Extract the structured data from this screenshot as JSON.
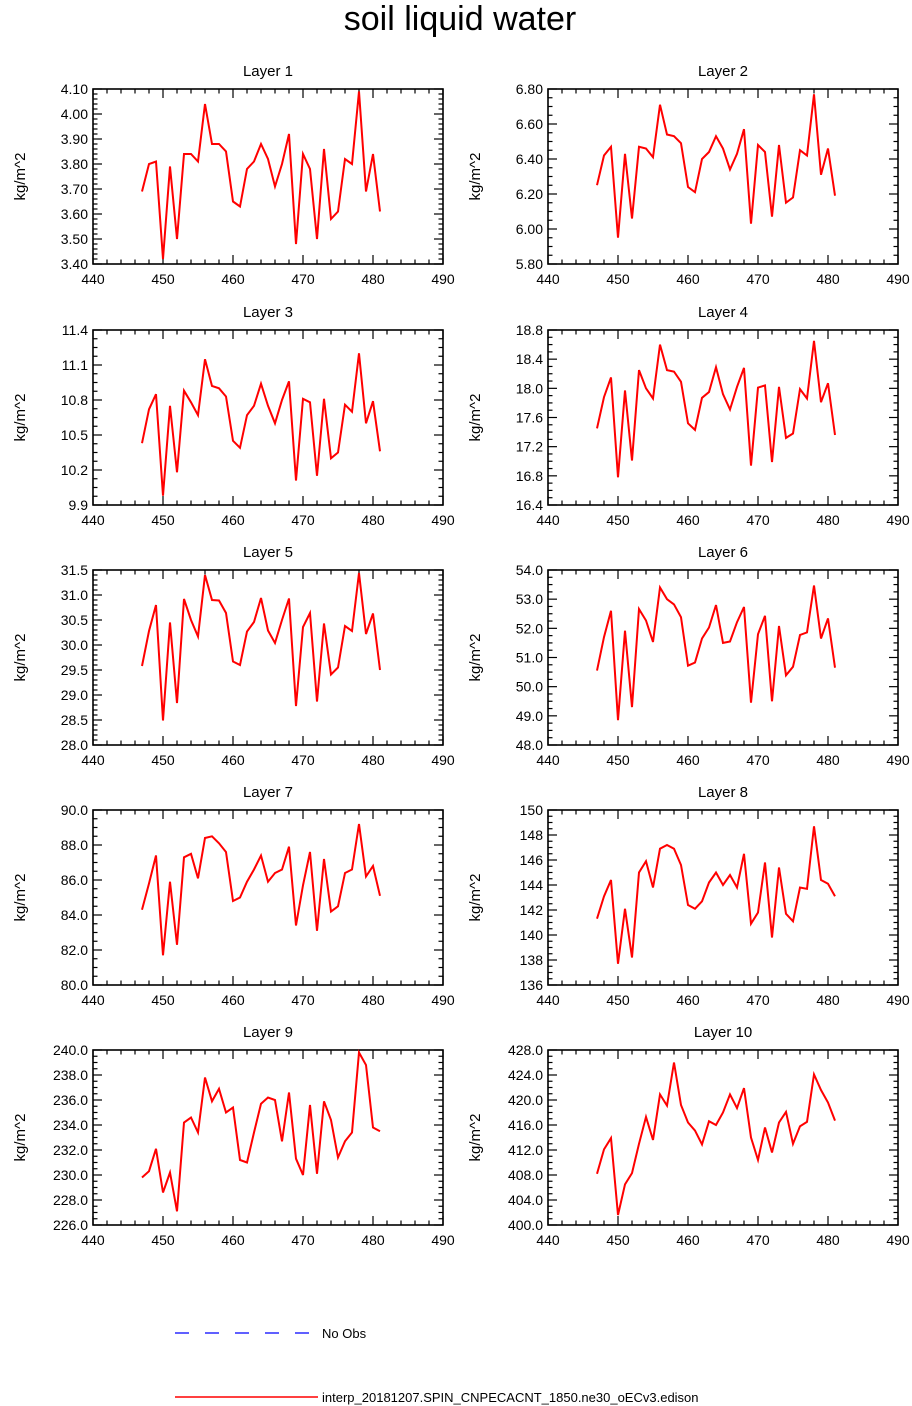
{
  "page": {
    "title": "soil liquid water"
  },
  "legend": {
    "no_obs_label": "No Obs",
    "no_obs_color": "#0000ff",
    "model_label": "interp_20181207.SPIN_CNPECACNT_1850.ne30_oECv3.edison",
    "model_color": "#ff0000"
  },
  "chart_data": [
    {
      "type": "line",
      "title": "Layer 1",
      "xlabel": "",
      "ylabel": "kg/m^2",
      "xlim": [
        440,
        490
      ],
      "xticks": [
        440,
        450,
        460,
        470,
        480,
        490
      ],
      "xtick_labels": [
        "440",
        "450",
        "460",
        "470",
        "480",
        "490"
      ],
      "ylim": [
        3.4,
        4.1
      ],
      "yticks": [
        3.4,
        3.5,
        3.6,
        3.7,
        3.8,
        3.9,
        4.0,
        4.1
      ],
      "ytick_labels": [
        "3.40",
        "3.50",
        "3.60",
        "3.70",
        "3.80",
        "3.90",
        "4.00",
        "4.10"
      ],
      "x": [
        447,
        448,
        449,
        450,
        451,
        452,
        453,
        454,
        455,
        456,
        457,
        458,
        459,
        460,
        461,
        462,
        463,
        464,
        465,
        466,
        467,
        468,
        469,
        470,
        471,
        472,
        473,
        474,
        475,
        476,
        477,
        478,
        479,
        480,
        481
      ],
      "series": [
        {
          "values": [
            3.69,
            3.8,
            3.81,
            3.42,
            3.79,
            3.5,
            3.84,
            3.84,
            3.81,
            4.04,
            3.88,
            3.88,
            3.85,
            3.65,
            3.63,
            3.78,
            3.81,
            3.88,
            3.82,
            3.71,
            3.8,
            3.92,
            3.48,
            3.84,
            3.78,
            3.5,
            3.86,
            3.58,
            3.61,
            3.82,
            3.8,
            4.09,
            3.69,
            3.84,
            3.61
          ],
          "color": "#ff0000"
        }
      ]
    },
    {
      "type": "line",
      "title": "Layer 2",
      "xlabel": "",
      "ylabel": "kg/m^2",
      "xlim": [
        440,
        490
      ],
      "xticks": [
        440,
        450,
        460,
        470,
        480,
        490
      ],
      "xtick_labels": [
        "440",
        "450",
        "460",
        "470",
        "480",
        "490"
      ],
      "ylim": [
        5.8,
        6.8
      ],
      "yticks": [
        5.8,
        6.0,
        6.2,
        6.4,
        6.6,
        6.8
      ],
      "ytick_labels": [
        "5.80",
        "6.00",
        "6.20",
        "6.40",
        "6.60",
        "6.80"
      ],
      "x": [
        447,
        448,
        449,
        450,
        451,
        452,
        453,
        454,
        455,
        456,
        457,
        458,
        459,
        460,
        461,
        462,
        463,
        464,
        465,
        466,
        467,
        468,
        469,
        470,
        471,
        472,
        473,
        474,
        475,
        476,
        477,
        478,
        479,
        480,
        481
      ],
      "series": [
        {
          "values": [
            6.25,
            6.42,
            6.47,
            5.95,
            6.43,
            6.06,
            6.47,
            6.46,
            6.41,
            6.71,
            6.54,
            6.53,
            6.49,
            6.24,
            6.21,
            6.4,
            6.44,
            6.53,
            6.46,
            6.34,
            6.43,
            6.57,
            6.03,
            6.48,
            6.44,
            6.07,
            6.48,
            6.15,
            6.18,
            6.45,
            6.42,
            6.77,
            6.31,
            6.46,
            6.19
          ],
          "color": "#ff0000"
        }
      ]
    },
    {
      "type": "line",
      "title": "Layer 3",
      "xlabel": "",
      "ylabel": "kg/m^2",
      "xlim": [
        440,
        490
      ],
      "xticks": [
        440,
        450,
        460,
        470,
        480,
        490
      ],
      "xtick_labels": [
        "440",
        "450",
        "460",
        "470",
        "480",
        "490"
      ],
      "ylim": [
        9.9,
        11.4
      ],
      "yticks": [
        9.9,
        10.2,
        10.5,
        10.8,
        11.1,
        11.4
      ],
      "ytick_labels": [
        "9.9",
        "10.2",
        "10.5",
        "10.8",
        "11.1",
        "11.4"
      ],
      "x": [
        447,
        448,
        449,
        450,
        451,
        452,
        453,
        454,
        455,
        456,
        457,
        458,
        459,
        460,
        461,
        462,
        463,
        464,
        465,
        466,
        467,
        468,
        469,
        470,
        471,
        472,
        473,
        474,
        475,
        476,
        477,
        478,
        479,
        480,
        481
      ],
      "series": [
        {
          "values": [
            10.43,
            10.72,
            10.85,
            9.98,
            10.75,
            10.18,
            10.88,
            10.78,
            10.67,
            11.15,
            10.92,
            10.9,
            10.83,
            10.45,
            10.39,
            10.67,
            10.75,
            10.94,
            10.75,
            10.6,
            10.8,
            10.96,
            10.11,
            10.81,
            10.78,
            10.15,
            10.81,
            10.3,
            10.35,
            10.76,
            10.7,
            11.2,
            10.6,
            10.79,
            10.36
          ],
          "color": "#ff0000"
        }
      ]
    },
    {
      "type": "line",
      "title": "Layer 4",
      "xlabel": "",
      "ylabel": "kg/m^2",
      "xlim": [
        440,
        490
      ],
      "xticks": [
        440,
        450,
        460,
        470,
        480,
        490
      ],
      "xtick_labels": [
        "440",
        "450",
        "460",
        "470",
        "480",
        "490"
      ],
      "ylim": [
        16.4,
        18.8
      ],
      "yticks": [
        16.4,
        16.8,
        17.2,
        17.6,
        18.0,
        18.4,
        18.8
      ],
      "ytick_labels": [
        "16.4",
        "16.8",
        "17.2",
        "17.6",
        "18.0",
        "18.4",
        "18.8"
      ],
      "x": [
        447,
        448,
        449,
        450,
        451,
        452,
        453,
        454,
        455,
        456,
        457,
        458,
        459,
        460,
        461,
        462,
        463,
        464,
        465,
        466,
        467,
        468,
        469,
        470,
        471,
        472,
        473,
        474,
        475,
        476,
        477,
        478,
        479,
        480,
        481
      ],
      "series": [
        {
          "values": [
            17.45,
            17.88,
            18.15,
            16.78,
            17.97,
            17.01,
            18.25,
            18.0,
            17.86,
            18.6,
            18.25,
            18.23,
            18.09,
            17.52,
            17.43,
            17.87,
            17.95,
            18.29,
            17.92,
            17.71,
            18.02,
            18.28,
            16.94,
            18.01,
            18.04,
            16.99,
            18.02,
            17.32,
            17.38,
            17.99,
            17.86,
            18.65,
            17.81,
            18.07,
            17.36
          ],
          "color": "#ff0000"
        }
      ]
    },
    {
      "type": "line",
      "title": "Layer 5",
      "xlabel": "",
      "ylabel": "kg/m^2",
      "xlim": [
        440,
        490
      ],
      "xticks": [
        440,
        450,
        460,
        470,
        480,
        490
      ],
      "xtick_labels": [
        "440",
        "450",
        "460",
        "470",
        "480",
        "490"
      ],
      "ylim": [
        28.0,
        31.5
      ],
      "yticks": [
        28.0,
        28.5,
        29.0,
        29.5,
        30.0,
        30.5,
        31.0,
        31.5
      ],
      "ytick_labels": [
        "28.0",
        "28.5",
        "29.0",
        "29.5",
        "30.0",
        "30.5",
        "31.0",
        "31.5"
      ],
      "x": [
        447,
        448,
        449,
        450,
        451,
        452,
        453,
        454,
        455,
        456,
        457,
        458,
        459,
        460,
        461,
        462,
        463,
        464,
        465,
        466,
        467,
        468,
        469,
        470,
        471,
        472,
        473,
        474,
        475,
        476,
        477,
        478,
        479,
        480,
        481
      ],
      "series": [
        {
          "values": [
            29.58,
            30.28,
            30.8,
            28.49,
            30.45,
            28.84,
            30.92,
            30.5,
            30.17,
            31.4,
            30.9,
            30.89,
            30.64,
            29.67,
            29.6,
            30.27,
            30.46,
            30.94,
            30.29,
            30.04,
            30.5,
            30.93,
            28.78,
            30.36,
            30.64,
            28.87,
            30.43,
            29.41,
            29.55,
            30.38,
            30.28,
            31.44,
            30.22,
            30.63,
            29.5
          ],
          "color": "#ff0000"
        }
      ]
    },
    {
      "type": "line",
      "title": "Layer 6",
      "xlabel": "",
      "ylabel": "kg/m^2",
      "xlim": [
        440,
        490
      ],
      "xticks": [
        440,
        450,
        460,
        470,
        480,
        490
      ],
      "xtick_labels": [
        "440",
        "450",
        "460",
        "470",
        "480",
        "490"
      ],
      "ylim": [
        48.0,
        54.0
      ],
      "yticks": [
        48.0,
        49.0,
        50.0,
        51.0,
        52.0,
        53.0,
        54.0
      ],
      "ytick_labels": [
        "48.0",
        "49.0",
        "50.0",
        "51.0",
        "52.0",
        "53.0",
        "54.0"
      ],
      "x": [
        447,
        448,
        449,
        450,
        451,
        452,
        453,
        454,
        455,
        456,
        457,
        458,
        459,
        460,
        461,
        462,
        463,
        464,
        465,
        466,
        467,
        468,
        469,
        470,
        471,
        472,
        473,
        474,
        475,
        476,
        477,
        478,
        479,
        480,
        481
      ],
      "series": [
        {
          "values": [
            50.55,
            51.7,
            52.6,
            48.85,
            51.92,
            49.3,
            52.66,
            52.27,
            51.53,
            53.4,
            53.0,
            52.82,
            52.38,
            50.72,
            50.83,
            51.65,
            52.03,
            52.8,
            51.5,
            51.55,
            52.21,
            52.73,
            49.45,
            51.8,
            52.43,
            49.5,
            52.08,
            50.39,
            50.68,
            51.77,
            51.86,
            53.47,
            51.65,
            52.34,
            50.65
          ],
          "color": "#ff0000"
        }
      ]
    },
    {
      "type": "line",
      "title": "Layer 7",
      "xlabel": "",
      "ylabel": "kg/m^2",
      "xlim": [
        440,
        490
      ],
      "xticks": [
        440,
        450,
        460,
        470,
        480,
        490
      ],
      "xtick_labels": [
        "440",
        "450",
        "460",
        "470",
        "480",
        "490"
      ],
      "ylim": [
        80.0,
        90.0
      ],
      "yticks": [
        80.0,
        82.0,
        84.0,
        86.0,
        88.0,
        90.0
      ],
      "ytick_labels": [
        "80.0",
        "82.0",
        "84.0",
        "86.0",
        "88.0",
        "90.0"
      ],
      "x": [
        447,
        448,
        449,
        450,
        451,
        452,
        453,
        454,
        455,
        456,
        457,
        458,
        459,
        460,
        461,
        462,
        463,
        464,
        465,
        466,
        467,
        468,
        469,
        470,
        471,
        472,
        473,
        474,
        475,
        476,
        477,
        478,
        479,
        480,
        481
      ],
      "series": [
        {
          "values": [
            84.3,
            85.8,
            87.4,
            81.7,
            85.9,
            82.3,
            87.3,
            87.5,
            86.1,
            88.4,
            88.5,
            88.1,
            87.6,
            84.8,
            85.0,
            85.9,
            86.6,
            87.4,
            85.9,
            86.4,
            86.6,
            87.9,
            83.4,
            85.7,
            87.6,
            83.1,
            87.2,
            84.2,
            84.5,
            86.4,
            86.6,
            89.2,
            86.2,
            86.8,
            85.1
          ],
          "color": "#ff0000"
        }
      ]
    },
    {
      "type": "line",
      "title": "Layer 8",
      "xlabel": "",
      "ylabel": "kg/m^2",
      "xlim": [
        440,
        490
      ],
      "xticks": [
        440,
        450,
        460,
        470,
        480,
        490
      ],
      "xtick_labels": [
        "440",
        "450",
        "460",
        "470",
        "480",
        "490"
      ],
      "ylim": [
        136,
        150
      ],
      "yticks": [
        136,
        138,
        140,
        142,
        144,
        146,
        148,
        150
      ],
      "ytick_labels": [
        "136",
        "138",
        "140",
        "142",
        "144",
        "146",
        "148",
        "150"
      ],
      "x": [
        447,
        448,
        449,
        450,
        451,
        452,
        453,
        454,
        455,
        456,
        457,
        458,
        459,
        460,
        461,
        462,
        463,
        464,
        465,
        466,
        467,
        468,
        469,
        470,
        471,
        472,
        473,
        474,
        475,
        476,
        477,
        478,
        479,
        480,
        481
      ],
      "series": [
        {
          "values": [
            141.3,
            143.1,
            144.4,
            137.7,
            142.1,
            138.2,
            145.0,
            145.9,
            143.8,
            146.9,
            147.2,
            146.9,
            145.6,
            142.4,
            142.1,
            142.7,
            144.2,
            145.0,
            144.0,
            144.8,
            143.8,
            146.5,
            140.9,
            141.8,
            145.8,
            139.8,
            145.4,
            141.7,
            141.1,
            143.8,
            143.7,
            148.7,
            144.4,
            144.1,
            143.1
          ],
          "color": "#ff0000"
        }
      ]
    },
    {
      "type": "line",
      "title": "Layer 9",
      "xlabel": "",
      "ylabel": "kg/m^2",
      "xlim": [
        440,
        490
      ],
      "xticks": [
        440,
        450,
        460,
        470,
        480,
        490
      ],
      "xtick_labels": [
        "440",
        "450",
        "460",
        "470",
        "480",
        "490"
      ],
      "ylim": [
        226.0,
        240.0
      ],
      "yticks": [
        226.0,
        228.0,
        230.0,
        232.0,
        234.0,
        236.0,
        238.0,
        240.0
      ],
      "ytick_labels": [
        "226.0",
        "228.0",
        "230.0",
        "232.0",
        "234.0",
        "236.0",
        "238.0",
        "240.0"
      ],
      "x": [
        447,
        448,
        449,
        450,
        451,
        452,
        453,
        454,
        455,
        456,
        457,
        458,
        459,
        460,
        461,
        462,
        463,
        464,
        465,
        466,
        467,
        468,
        469,
        470,
        471,
        472,
        473,
        474,
        475,
        476,
        477,
        478,
        479,
        480,
        481
      ],
      "series": [
        {
          "values": [
            229.8,
            230.3,
            232.1,
            228.6,
            230.2,
            227.1,
            234.2,
            234.6,
            233.4,
            237.8,
            235.9,
            236.9,
            235.0,
            235.4,
            231.2,
            231.0,
            233.4,
            235.7,
            236.2,
            236.0,
            232.7,
            236.6,
            231.3,
            230.0,
            235.6,
            230.1,
            235.9,
            234.4,
            231.4,
            232.7,
            233.4,
            239.8,
            238.8,
            233.8,
            233.5
          ],
          "color": "#ff0000"
        }
      ]
    },
    {
      "type": "line",
      "title": "Layer 10",
      "xlabel": "",
      "ylabel": "kg/m^2",
      "xlim": [
        440,
        490
      ],
      "xticks": [
        440,
        450,
        460,
        470,
        480,
        490
      ],
      "xtick_labels": [
        "440",
        "450",
        "460",
        "470",
        "480",
        "490"
      ],
      "ylim": [
        400.0,
        428.0
      ],
      "yticks": [
        400.0,
        404.0,
        408.0,
        412.0,
        416.0,
        420.0,
        424.0,
        428.0
      ],
      "ytick_labels": [
        "400.0",
        "404.0",
        "408.0",
        "412.0",
        "416.0",
        "420.0",
        "424.0",
        "428.0"
      ],
      "x": [
        447,
        448,
        449,
        450,
        451,
        452,
        453,
        454,
        455,
        456,
        457,
        458,
        459,
        460,
        461,
        462,
        463,
        464,
        465,
        466,
        467,
        468,
        469,
        470,
        471,
        472,
        473,
        474,
        475,
        476,
        477,
        478,
        479,
        480,
        481
      ],
      "series": [
        {
          "values": [
            408.2,
            412.1,
            413.9,
            401.6,
            406.5,
            408.3,
            413.0,
            417.3,
            413.6,
            420.9,
            419.1,
            426.0,
            419.2,
            416.4,
            415.1,
            412.9,
            416.6,
            416.0,
            418.0,
            420.9,
            418.7,
            421.9,
            414.0,
            410.4,
            415.6,
            411.6,
            416.4,
            418.1,
            413.0,
            415.8,
            416.5,
            424.1,
            421.6,
            419.6,
            416.7
          ],
          "color": "#ff0000"
        }
      ]
    }
  ]
}
